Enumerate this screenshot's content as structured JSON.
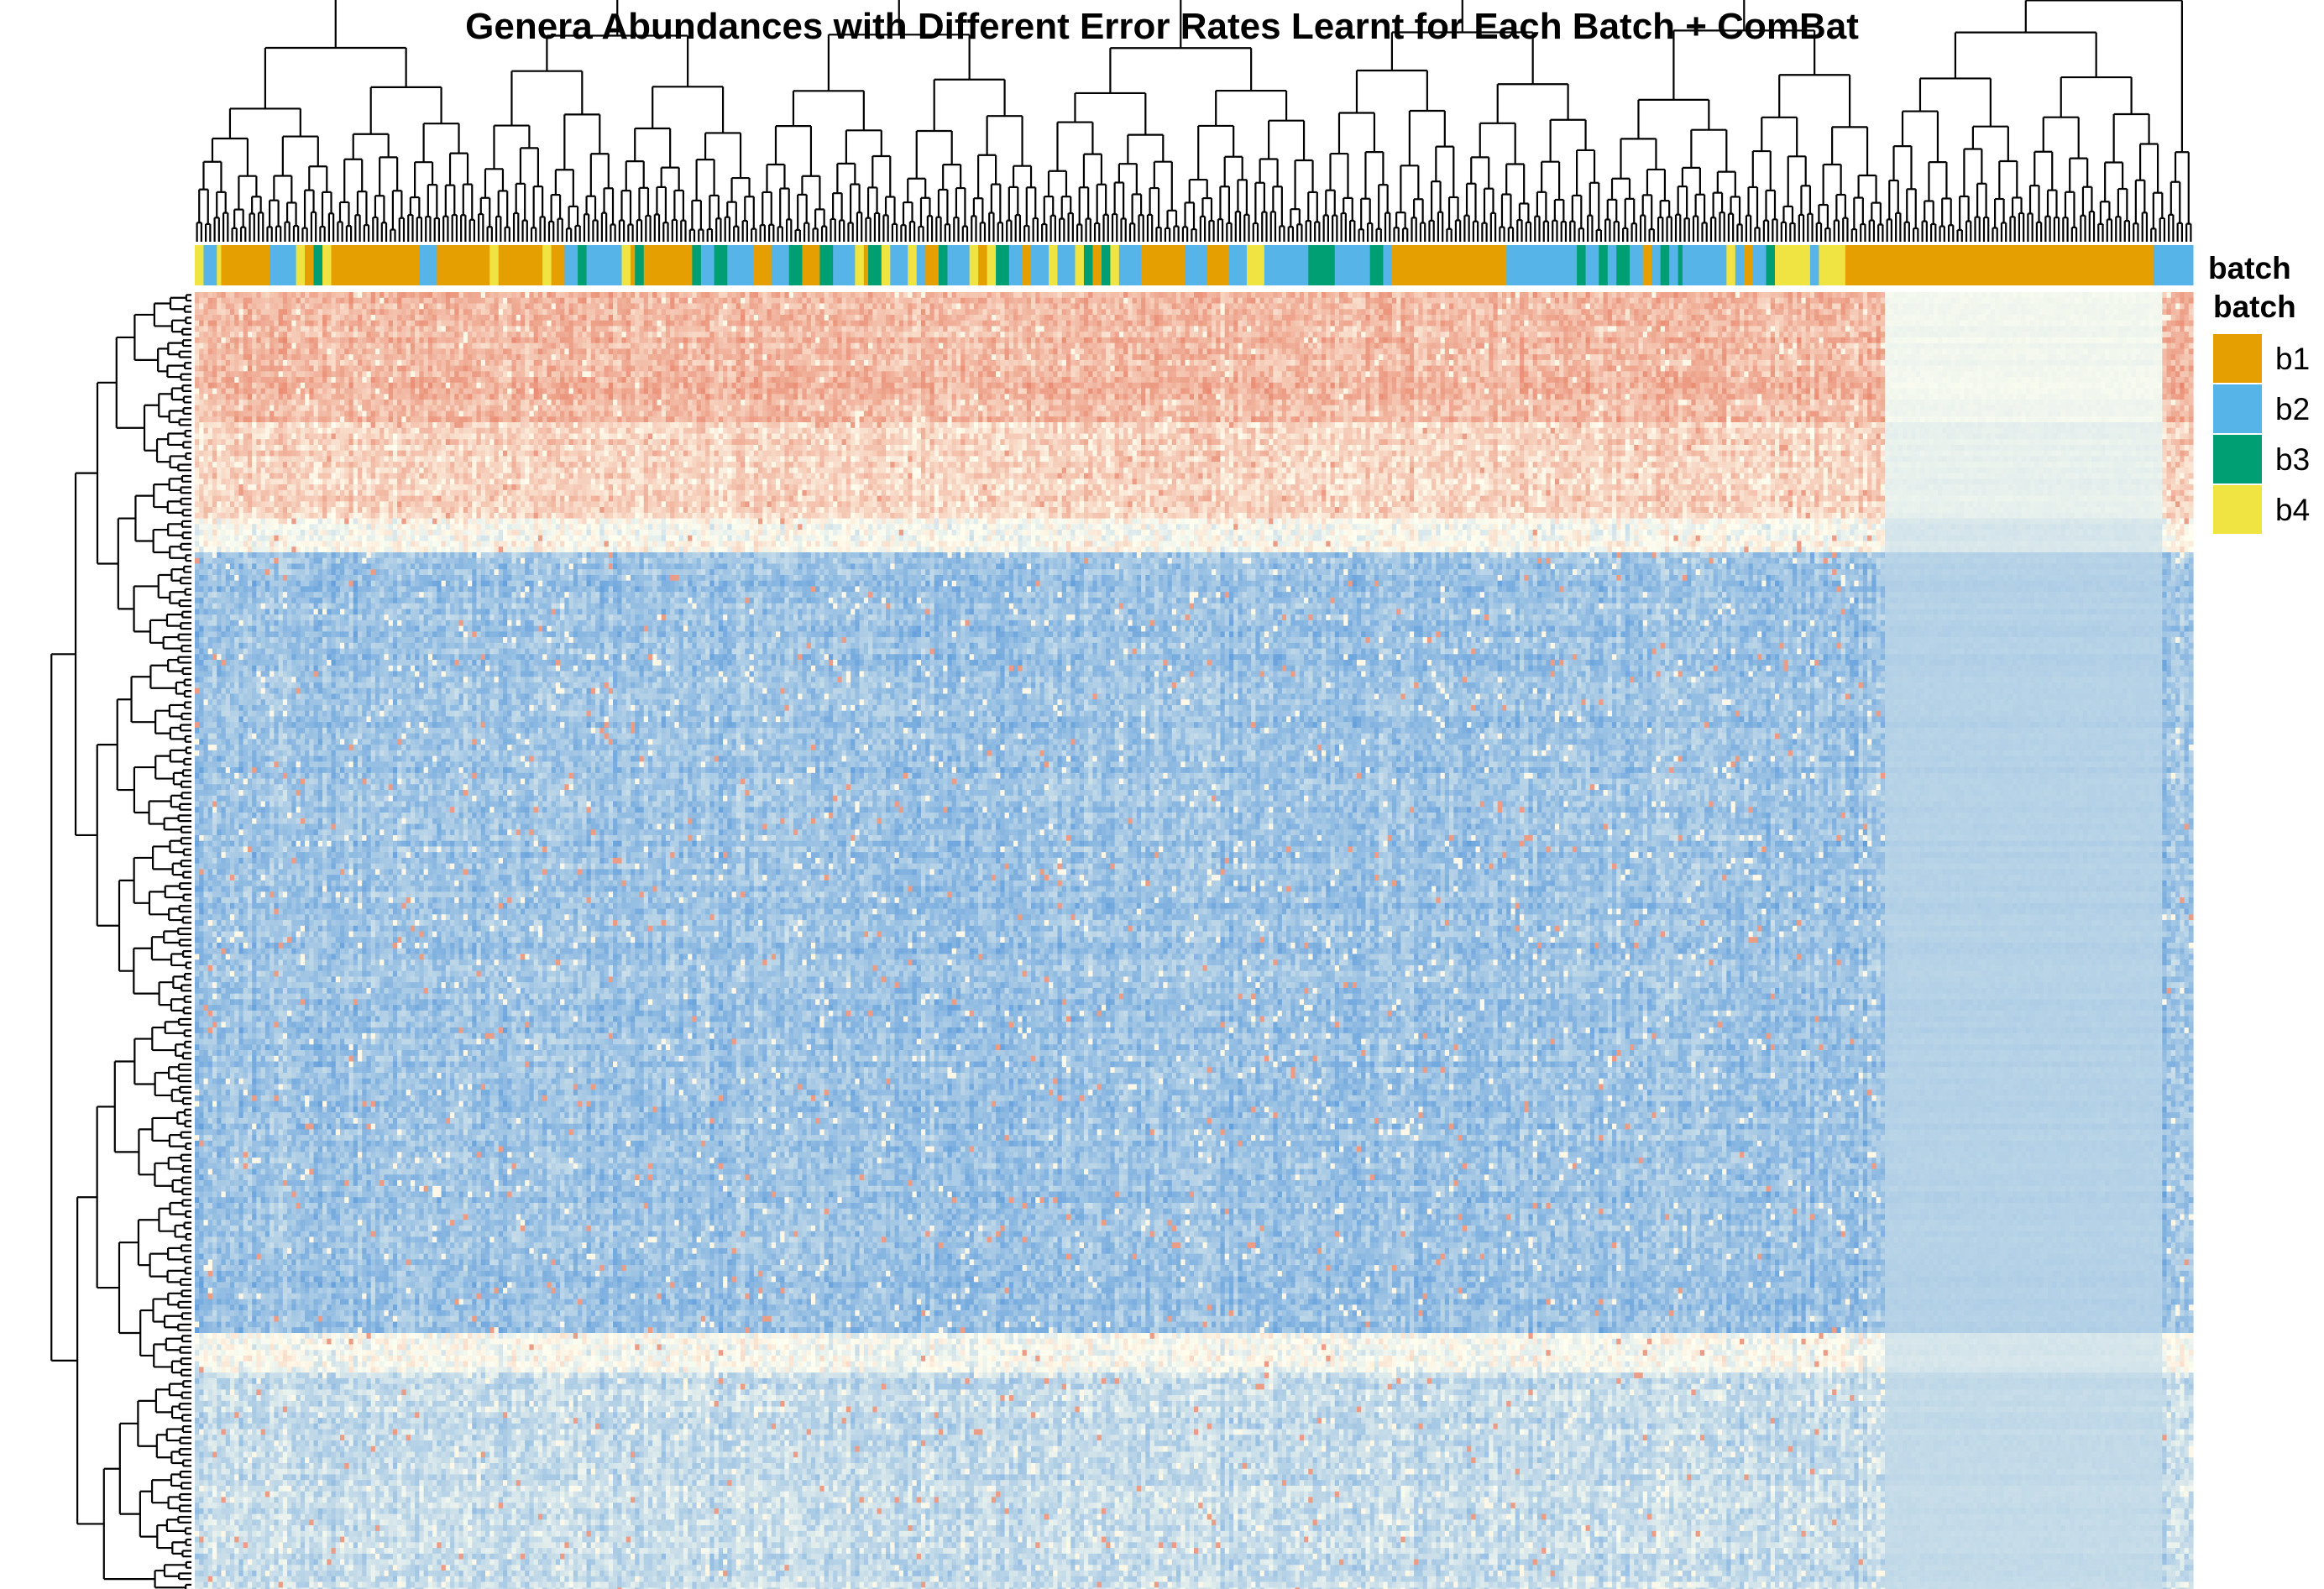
{
  "chart_data": {
    "type": "heatmap",
    "title": "Genera Abundances with Different Error Rates Learnt for Each Batch + ComBat",
    "annotation_label": "batch",
    "legend": {
      "title": "batch",
      "placement": "right",
      "entries": [
        {
          "label": "b1",
          "color": "#E69F00"
        },
        {
          "label": "b2",
          "color": "#56B4E9"
        },
        {
          "label": "b3",
          "color": "#009E73"
        },
        {
          "label": "b4",
          "color": "#F0E442"
        }
      ]
    },
    "color_scale": {
      "low": "#4A90D9",
      "mid": "#FFFFF0",
      "high": "#E05A3C"
    },
    "column_batch_segments": [
      [
        "b4",
        2
      ],
      [
        "b2",
        3
      ],
      [
        "b4",
        1
      ],
      [
        "b1",
        11
      ],
      [
        "b2",
        6
      ],
      [
        "b4",
        2
      ],
      [
        "b1",
        2
      ],
      [
        "b3",
        2
      ],
      [
        "b4",
        2
      ],
      [
        "b1",
        20
      ],
      [
        "b2",
        4
      ],
      [
        "b1",
        12
      ],
      [
        "b4",
        2
      ],
      [
        "b1",
        10
      ],
      [
        "b4",
        2
      ],
      [
        "b1",
        3
      ],
      [
        "b2",
        3
      ],
      [
        "b3",
        2
      ],
      [
        "b2",
        8
      ],
      [
        "b4",
        2
      ],
      [
        "b1",
        1
      ],
      [
        "b3",
        2
      ],
      [
        "b1",
        11
      ],
      [
        "b3",
        2
      ],
      [
        "b2",
        3
      ],
      [
        "b3",
        3
      ],
      [
        "b2",
        6
      ],
      [
        "b1",
        4
      ],
      [
        "b2",
        4
      ],
      [
        "b3",
        3
      ],
      [
        "b1",
        4
      ],
      [
        "b3",
        3
      ],
      [
        "b2",
        5
      ],
      [
        "b4",
        2
      ],
      [
        "b1",
        1
      ],
      [
        "b3",
        3
      ],
      [
        "b4",
        2
      ],
      [
        "b2",
        4
      ],
      [
        "b4",
        2
      ],
      [
        "b2",
        2
      ],
      [
        "b1",
        3
      ],
      [
        "b3",
        2
      ],
      [
        "b2",
        5
      ],
      [
        "b4",
        2
      ],
      [
        "b1",
        2
      ],
      [
        "b4",
        2
      ],
      [
        "b3",
        3
      ],
      [
        "b2",
        3
      ],
      [
        "b1",
        2
      ],
      [
        "b2",
        4
      ],
      [
        "b4",
        2
      ],
      [
        "b2",
        4
      ],
      [
        "b4",
        2
      ],
      [
        "b3",
        2
      ],
      [
        "b1",
        2
      ],
      [
        "b3",
        2
      ],
      [
        "b4",
        2
      ],
      [
        "b2",
        5
      ],
      [
        "b1",
        10
      ],
      [
        "b2",
        5
      ],
      [
        "b1",
        5
      ],
      [
        "b2",
        4
      ],
      [
        "b4",
        4
      ],
      [
        "b2",
        10
      ],
      [
        "b3",
        6
      ],
      [
        "b2",
        8
      ],
      [
        "b3",
        3
      ],
      [
        "b2",
        2
      ],
      [
        "b1",
        26
      ],
      [
        "b2",
        16
      ],
      [
        "b3",
        2
      ],
      [
        "b2",
        3
      ],
      [
        "b3",
        2
      ],
      [
        "b2",
        2
      ],
      [
        "b3",
        3
      ],
      [
        "b2",
        3
      ],
      [
        "b1",
        2
      ],
      [
        "b2",
        2
      ],
      [
        "b3",
        2
      ],
      [
        "b2",
        2
      ],
      [
        "b3",
        1
      ],
      [
        "b2",
        10
      ],
      [
        "b4",
        2
      ],
      [
        "b2",
        2
      ],
      [
        "b1",
        2
      ],
      [
        "b2",
        3
      ],
      [
        "b3",
        2
      ],
      [
        "b4",
        8
      ],
      [
        "b2",
        2
      ],
      [
        "b4",
        6
      ],
      [
        "b1",
        70
      ],
      [
        "b2",
        9
      ]
    ]
  }
}
